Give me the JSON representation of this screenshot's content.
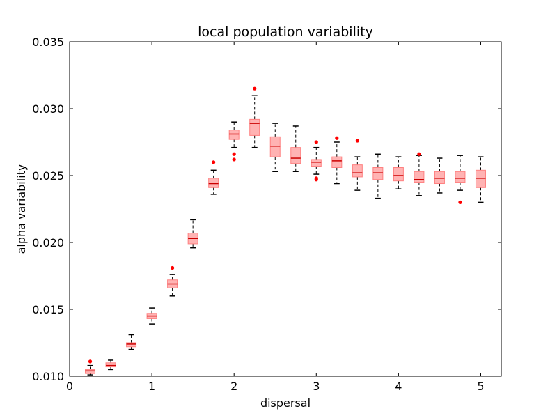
{
  "chart_data": {
    "type": "box",
    "title": "local population variability",
    "xlabel": "dispersal",
    "ylabel": "alpha variability",
    "xlim": [
      0,
      5.25
    ],
    "ylim": [
      0.01,
      0.035
    ],
    "x_ticks": [
      0,
      1,
      2,
      3,
      4,
      5
    ],
    "x_tick_labels": [
      "0",
      "1",
      "2",
      "3",
      "4",
      "5"
    ],
    "y_ticks": [
      0.01,
      0.015,
      0.02,
      0.025,
      0.03,
      0.035
    ],
    "y_tick_labels": [
      "0.010",
      "0.015",
      "0.020",
      "0.025",
      "0.030",
      "0.035"
    ],
    "grid": false,
    "colors": {
      "box_fill": "#ffb3b3",
      "box_edge": "#ff8080",
      "median": "#cc0000",
      "whisker": "#000000",
      "outlier": "#ff0000"
    },
    "boxes": [
      {
        "x": 0.25,
        "whislo": 0.0101,
        "q1": 0.0102,
        "med": 0.0104,
        "q3": 0.0105,
        "whishi": 0.0108,
        "fliers": [
          0.0111
        ]
      },
      {
        "x": 0.5,
        "whislo": 0.0105,
        "q1": 0.0107,
        "med": 0.0108,
        "q3": 0.011,
        "whishi": 0.0112,
        "fliers": []
      },
      {
        "x": 0.75,
        "whislo": 0.012,
        "q1": 0.0122,
        "med": 0.0124,
        "q3": 0.0125,
        "whishi": 0.0131,
        "fliers": []
      },
      {
        "x": 1.0,
        "whislo": 0.0139,
        "q1": 0.0143,
        "med": 0.0145,
        "q3": 0.0147,
        "whishi": 0.0151,
        "fliers": []
      },
      {
        "x": 1.25,
        "whislo": 0.016,
        "q1": 0.0166,
        "med": 0.0169,
        "q3": 0.0172,
        "whishi": 0.0176,
        "fliers": [
          0.0181
        ]
      },
      {
        "x": 1.5,
        "whislo": 0.0196,
        "q1": 0.0199,
        "med": 0.0203,
        "q3": 0.0207,
        "whishi": 0.0217,
        "fliers": []
      },
      {
        "x": 1.75,
        "whislo": 0.0236,
        "q1": 0.0241,
        "med": 0.0244,
        "q3": 0.0248,
        "whishi": 0.0254,
        "fliers": [
          0.026
        ]
      },
      {
        "x": 2.0,
        "whislo": 0.0271,
        "q1": 0.0277,
        "med": 0.0281,
        "q3": 0.0284,
        "whishi": 0.029,
        "fliers": [
          0.0266,
          0.0262
        ]
      },
      {
        "x": 2.25,
        "whislo": 0.0271,
        "q1": 0.028,
        "med": 0.0289,
        "q3": 0.0292,
        "whishi": 0.031,
        "fliers": [
          0.0315
        ]
      },
      {
        "x": 2.5,
        "whislo": 0.0253,
        "q1": 0.0264,
        "med": 0.0272,
        "q3": 0.0279,
        "whishi": 0.0289,
        "fliers": []
      },
      {
        "x": 2.75,
        "whislo": 0.0253,
        "q1": 0.0259,
        "med": 0.0263,
        "q3": 0.0271,
        "whishi": 0.0287,
        "fliers": []
      },
      {
        "x": 3.0,
        "whislo": 0.0251,
        "q1": 0.0257,
        "med": 0.026,
        "q3": 0.0262,
        "whishi": 0.0271,
        "fliers": [
          0.0275,
          0.0248,
          0.0247
        ]
      },
      {
        "x": 3.25,
        "whislo": 0.0244,
        "q1": 0.0256,
        "med": 0.0261,
        "q3": 0.0264,
        "whishi": 0.0275,
        "fliers": [
          0.0278
        ]
      },
      {
        "x": 3.5,
        "whislo": 0.0239,
        "q1": 0.0249,
        "med": 0.0252,
        "q3": 0.0258,
        "whishi": 0.0264,
        "fliers": [
          0.0276
        ]
      },
      {
        "x": 3.75,
        "whislo": 0.0233,
        "q1": 0.0247,
        "med": 0.0252,
        "q3": 0.0256,
        "whishi": 0.0266,
        "fliers": []
      },
      {
        "x": 4.0,
        "whislo": 0.024,
        "q1": 0.0246,
        "med": 0.025,
        "q3": 0.0256,
        "whishi": 0.0264,
        "fliers": []
      },
      {
        "x": 4.25,
        "whislo": 0.0235,
        "q1": 0.0245,
        "med": 0.0247,
        "q3": 0.0253,
        "whishi": 0.0265,
        "fliers": [
          0.0266
        ]
      },
      {
        "x": 4.5,
        "whislo": 0.0237,
        "q1": 0.0244,
        "med": 0.0248,
        "q3": 0.0253,
        "whishi": 0.0263,
        "fliers": []
      },
      {
        "x": 4.75,
        "whislo": 0.0239,
        "q1": 0.0245,
        "med": 0.0248,
        "q3": 0.0253,
        "whishi": 0.0265,
        "fliers": [
          0.023
        ]
      },
      {
        "x": 5.0,
        "whislo": 0.023,
        "q1": 0.0241,
        "med": 0.0248,
        "q3": 0.0254,
        "whishi": 0.0264,
        "fliers": []
      }
    ]
  }
}
